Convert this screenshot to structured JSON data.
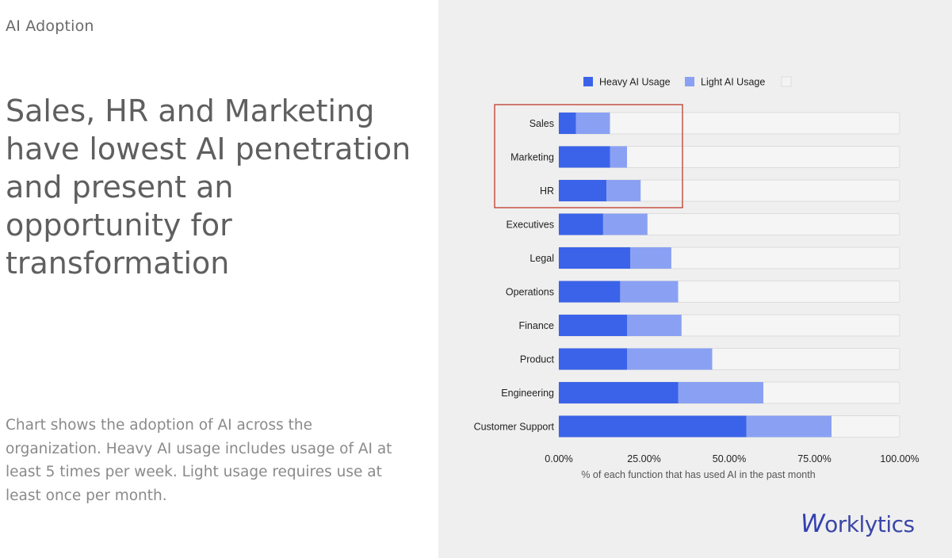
{
  "page": {
    "section_label": "AI Adoption",
    "headline": "Sales, HR and Marketing have lowest AI penetration and present an opportunity for transformation",
    "description": "Chart shows the adoption of AI across the organization. Heavy AI usage includes usage of AI at least 5 times per week. Light usage requires use at least once per month.",
    "logo_text": "Worklytics",
    "logo_initial": "W",
    "logo_rest": "orklytics"
  },
  "colors": {
    "heavy": "#3b63e9",
    "light": "#8aa1f3",
    "track": "#f5f5f5",
    "track_border": "#dcdcdc",
    "highlight": "#c0392b",
    "logo": "#3b46a8"
  },
  "chart_data": {
    "type": "bar",
    "orientation": "horizontal",
    "stacked": true,
    "categories": [
      "Sales",
      "Marketing",
      "HR",
      "Executives",
      "Legal",
      "Operations",
      "Finance",
      "Product",
      "Engineering",
      "Customer Support"
    ],
    "series": [
      {
        "name": "Heavy AI Usage",
        "values": [
          5,
          15,
          14,
          13,
          21,
          18,
          20,
          20,
          35,
          55
        ]
      },
      {
        "name": "Light AI Usage",
        "values": [
          10,
          5,
          10,
          13,
          12,
          17,
          16,
          25,
          25,
          25
        ]
      }
    ],
    "legend_extra": "",
    "xlabel": "% of each function that has used AI in the past month",
    "xlim": [
      0,
      100
    ],
    "xticks": [
      0,
      25,
      50,
      75,
      100
    ],
    "xtick_labels": [
      "0.00%",
      "25.00%",
      "50.00%",
      "75.00%",
      "100.00%"
    ],
    "legend_position": "top",
    "highlighted_categories": [
      "Sales",
      "Marketing",
      "HR"
    ]
  }
}
